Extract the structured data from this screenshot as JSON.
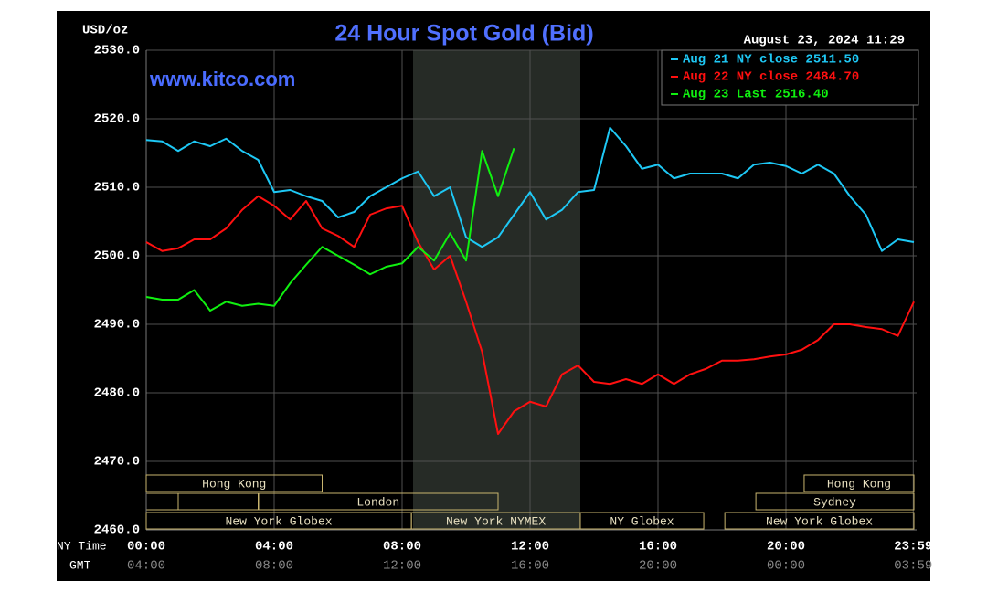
{
  "chart_data": {
    "type": "line",
    "title": "24 Hour Spot Gold (Bid)",
    "y_label": "USD/oz",
    "timestamp": "August 23, 2024 11:29",
    "watermark": "www.kitco.com",
    "x_label": "NY Time",
    "x2_label": "GMT",
    "x": [
      0,
      0.5,
      1,
      1.5,
      2,
      2.5,
      3,
      3.5,
      4,
      4.5,
      5,
      5.5,
      6,
      6.5,
      7,
      7.5,
      8,
      8.5,
      9,
      9.5,
      10,
      10.5,
      11,
      11.5,
      12,
      12.5,
      13,
      13.5,
      14,
      14.5,
      15,
      15.5,
      16,
      16.5,
      17,
      17.5,
      18,
      18.5,
      19,
      19.5,
      20,
      20.5,
      21,
      21.5,
      22,
      22.5,
      23,
      23.5,
      24
    ],
    "xlim": [
      0,
      24
    ],
    "xticks": [
      {
        "value": 0,
        "label": "00:00"
      },
      {
        "value": 4,
        "label": "04:00"
      },
      {
        "value": 8,
        "label": "08:00"
      },
      {
        "value": 12,
        "label": "12:00"
      },
      {
        "value": 16,
        "label": "16:00"
      },
      {
        "value": 20,
        "label": "20:00"
      },
      {
        "value": 23.98,
        "label": "23:59"
      }
    ],
    "x2ticks": [
      {
        "value": 0,
        "label": "04:00"
      },
      {
        "value": 4,
        "label": "08:00"
      },
      {
        "value": 8,
        "label": "12:00"
      },
      {
        "value": 12,
        "label": "16:00"
      },
      {
        "value": 16,
        "label": "20:00"
      },
      {
        "value": 20,
        "label": "00:00"
      },
      {
        "value": 23.98,
        "label": "03:59"
      }
    ],
    "ylim": [
      2460,
      2530
    ],
    "yticks": [
      {
        "value": 2460,
        "label": "2460.0"
      },
      {
        "value": 2470,
        "label": "2470.0"
      },
      {
        "value": 2480,
        "label": "2480.0"
      },
      {
        "value": 2490,
        "label": "2490.0"
      },
      {
        "value": 2500,
        "label": "2500.0"
      },
      {
        "value": 2510,
        "label": "2510.0"
      },
      {
        "value": 2520,
        "label": "2520.0"
      },
      {
        "value": 2530,
        "label": "2530.0"
      }
    ],
    "grid": true,
    "legend": "top-right",
    "series": [
      {
        "name": "Aug 21 NY close 2511.50",
        "color": "#1ec8f5",
        "values": [
          2516.9,
          2516.7,
          2515.3,
          2516.7,
          2516,
          2517.1,
          2515.3,
          2514,
          2509.3,
          2509.6,
          2508.7,
          2508,
          2505.6,
          2506.4,
          2508.7,
          2510,
          2511.3,
          2512.3,
          2508.7,
          2510,
          2502.7,
          2501.3,
          2502.7,
          2506,
          2509.3,
          2505.3,
          2506.7,
          2509.3,
          2509.6,
          2518.7,
          2516,
          2512.7,
          2513.3,
          2511.3,
          2512,
          2512,
          2512,
          2511.3,
          2513.3,
          2513.6,
          2513.1,
          2512,
          2513.3,
          2512,
          2508.7,
          2506,
          2500.7,
          2502.4,
          2502
        ]
      },
      {
        "name": "Aug 22 NY close 2484.70",
        "color": "#ff1010",
        "values": [
          2502,
          2500.7,
          2501.1,
          2502.4,
          2502.4,
          2504,
          2506.7,
          2508.7,
          2507.3,
          2505.3,
          2508,
          2504,
          2502.9,
          2501.3,
          2506,
          2506.9,
          2507.3,
          2502,
          2498,
          2500,
          2493.3,
          2486,
          2474,
          2477.3,
          2478.7,
          2478,
          2482.7,
          2484,
          2481.6,
          2481.3,
          2482,
          2481.3,
          2482.7,
          2481.3,
          2482.7,
          2483.5,
          2484.7,
          2484.7,
          2484.9,
          2485.3,
          2485.6,
          2486.3,
          2487.7,
          2490,
          2490,
          2489.6,
          2489.3,
          2488.3,
          2493.3
        ]
      },
      {
        "name": "Aug 23 Last 2516.40",
        "color": "#10f010",
        "values": [
          2494,
          2493.6,
          2493.6,
          2495,
          2492,
          2493.3,
          2492.7,
          2493,
          2492.7,
          2496,
          2498.7,
          2501.3,
          2500,
          2498.7,
          2497.3,
          2498.4,
          2498.9,
          2501.3,
          2499.3,
          2503.3,
          2499.3,
          2515.3,
          2508.7,
          2515.7,
          null,
          null,
          null,
          null,
          null,
          null,
          null,
          null,
          null,
          null,
          null,
          null,
          null,
          null,
          null,
          null,
          null,
          null,
          null,
          null,
          null,
          null,
          null,
          null,
          null
        ]
      }
    ],
    "sessions": [
      [
        {
          "label": "Hong Kong",
          "start": 0,
          "end": 5.5
        },
        {
          "label": "Hong Kong",
          "start": 20.57,
          "end": 24
        }
      ],
      [
        {
          "label": "London",
          "start": 3.5,
          "end": 11
        },
        {
          "label": "Sydney",
          "start": 19.06,
          "end": 24
        }
      ],
      [
        {
          "label": "New York Globex",
          "start": 0,
          "end": 8.29
        },
        {
          "label": "New York NYMEX",
          "start": 8.29,
          "end": 13.57
        },
        {
          "label": "NY Globex",
          "start": 13.57,
          "end": 17.43
        },
        {
          "label": "New York Globex",
          "start": 18.09,
          "end": 24
        }
      ]
    ]
  }
}
